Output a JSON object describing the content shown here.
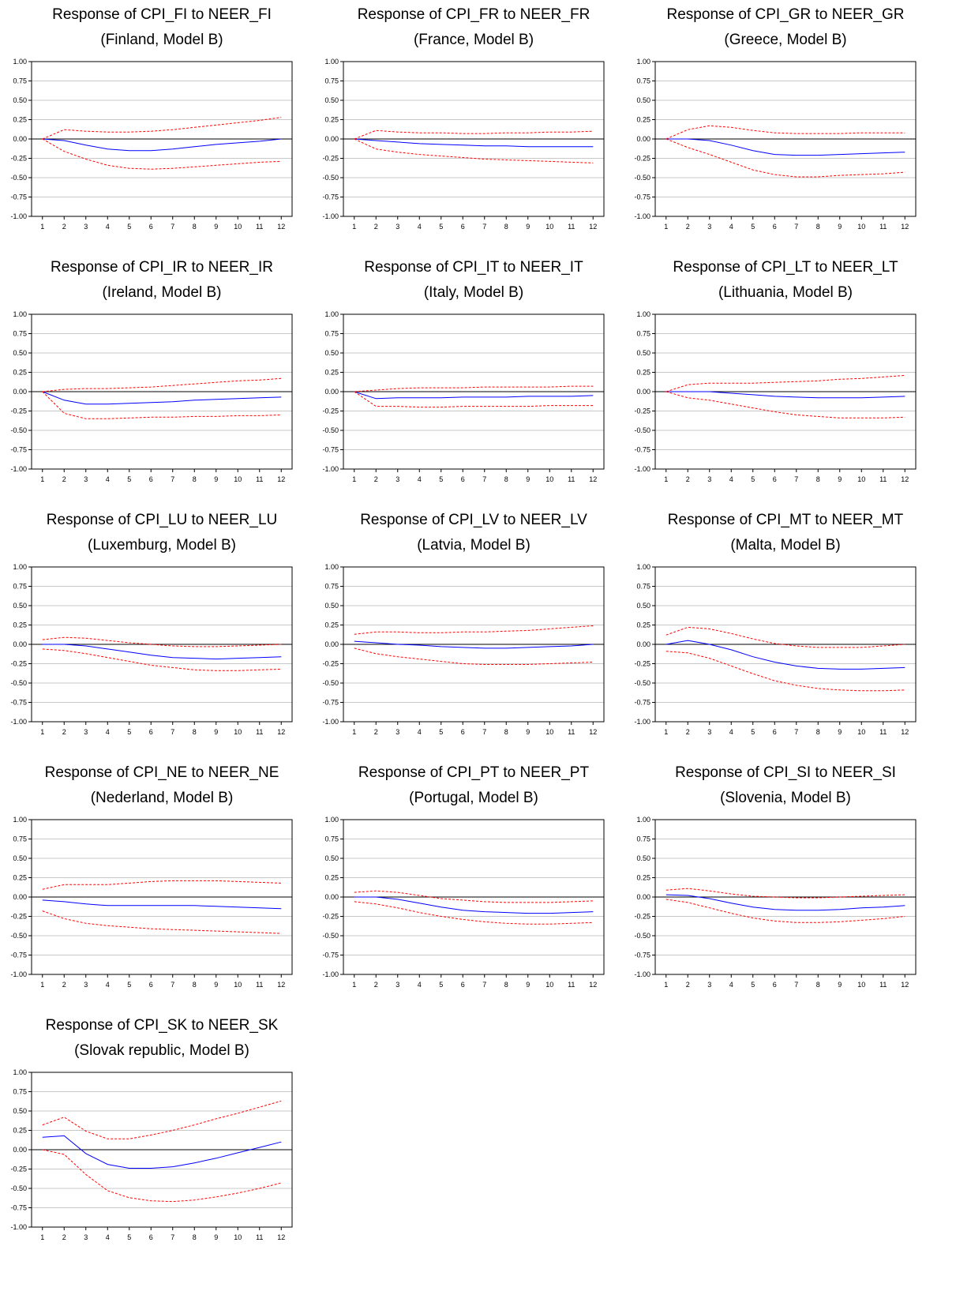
{
  "chart_data": [
    {
      "type": "line",
      "title": "Response of CPI_FI to NEER_FI",
      "subtitle": "(Finland, Model B)",
      "x": [
        1,
        2,
        3,
        4,
        5,
        6,
        7,
        8,
        9,
        10,
        11,
        12
      ],
      "ylim": [
        -1,
        1
      ],
      "series": [
        {
          "style": "solid",
          "color": "#0000ff",
          "values": [
            0,
            -0.02,
            -0.08,
            -0.13,
            -0.15,
            -0.15,
            -0.13,
            -0.1,
            -0.07,
            -0.05,
            -0.03,
            0
          ]
        },
        {
          "style": "dashed",
          "color": "#ff0000",
          "values": [
            0,
            0.12,
            0.1,
            0.09,
            0.09,
            0.1,
            0.12,
            0.15,
            0.18,
            0.21,
            0.24,
            0.28
          ]
        },
        {
          "style": "dashed",
          "color": "#ff0000",
          "values": [
            0,
            -0.16,
            -0.26,
            -0.34,
            -0.38,
            -0.39,
            -0.38,
            -0.36,
            -0.34,
            -0.32,
            -0.3,
            -0.29
          ]
        }
      ]
    },
    {
      "type": "line",
      "title": "Response of CPI_FR to NEER_FR",
      "subtitle": "(France, Model B)",
      "x": [
        1,
        2,
        3,
        4,
        5,
        6,
        7,
        8,
        9,
        10,
        11,
        12
      ],
      "ylim": [
        -1,
        1
      ],
      "series": [
        {
          "style": "solid",
          "color": "#0000ff",
          "values": [
            0,
            -0.02,
            -0.04,
            -0.06,
            -0.07,
            -0.08,
            -0.09,
            -0.09,
            -0.1,
            -0.1,
            -0.1,
            -0.1
          ]
        },
        {
          "style": "dashed",
          "color": "#ff0000",
          "values": [
            0,
            0.11,
            0.09,
            0.08,
            0.08,
            0.07,
            0.07,
            0.08,
            0.08,
            0.09,
            0.09,
            0.1
          ]
        },
        {
          "style": "dashed",
          "color": "#ff0000",
          "values": [
            0,
            -0.13,
            -0.17,
            -0.2,
            -0.22,
            -0.24,
            -0.26,
            -0.27,
            -0.28,
            -0.29,
            -0.3,
            -0.31
          ]
        }
      ]
    },
    {
      "type": "line",
      "title": "Response of CPI_GR to NEER_GR",
      "subtitle": "(Greece, Model B)",
      "x": [
        1,
        2,
        3,
        4,
        5,
        6,
        7,
        8,
        9,
        10,
        11,
        12
      ],
      "ylim": [
        -1,
        1
      ],
      "series": [
        {
          "style": "solid",
          "color": "#0000ff",
          "values": [
            0,
            0,
            -0.02,
            -0.08,
            -0.15,
            -0.2,
            -0.21,
            -0.21,
            -0.2,
            -0.19,
            -0.18,
            -0.17
          ]
        },
        {
          "style": "dashed",
          "color": "#ff0000",
          "values": [
            0,
            0.12,
            0.17,
            0.15,
            0.11,
            0.08,
            0.07,
            0.07,
            0.07,
            0.08,
            0.08,
            0.08
          ]
        },
        {
          "style": "dashed",
          "color": "#ff0000",
          "values": [
            0,
            -0.11,
            -0.2,
            -0.3,
            -0.4,
            -0.46,
            -0.49,
            -0.49,
            -0.47,
            -0.46,
            -0.45,
            -0.43
          ]
        }
      ]
    },
    {
      "type": "line",
      "title": "Response of CPI_IR to NEER_IR",
      "subtitle": "(Ireland, Model B)",
      "x": [
        1,
        2,
        3,
        4,
        5,
        6,
        7,
        8,
        9,
        10,
        11,
        12
      ],
      "ylim": [
        -1,
        1
      ],
      "series": [
        {
          "style": "solid",
          "color": "#0000ff",
          "values": [
            0,
            -0.11,
            -0.16,
            -0.16,
            -0.15,
            -0.14,
            -0.13,
            -0.11,
            -0.1,
            -0.09,
            -0.08,
            -0.07
          ]
        },
        {
          "style": "dashed",
          "color": "#ff0000",
          "values": [
            0,
            0.03,
            0.04,
            0.04,
            0.05,
            0.06,
            0.08,
            0.1,
            0.12,
            0.14,
            0.15,
            0.17
          ]
        },
        {
          "style": "dashed",
          "color": "#ff0000",
          "values": [
            0,
            -0.28,
            -0.35,
            -0.35,
            -0.34,
            -0.33,
            -0.33,
            -0.32,
            -0.32,
            -0.31,
            -0.31,
            -0.3
          ]
        }
      ]
    },
    {
      "type": "line",
      "title": "Response of CPI_IT to NEER_IT",
      "subtitle": "(Italy, Model B)",
      "x": [
        1,
        2,
        3,
        4,
        5,
        6,
        7,
        8,
        9,
        10,
        11,
        12
      ],
      "ylim": [
        -1,
        1
      ],
      "series": [
        {
          "style": "solid",
          "color": "#0000ff",
          "values": [
            0,
            -0.09,
            -0.08,
            -0.08,
            -0.08,
            -0.07,
            -0.07,
            -0.07,
            -0.06,
            -0.06,
            -0.06,
            -0.05
          ]
        },
        {
          "style": "dashed",
          "color": "#ff0000",
          "values": [
            0,
            0.02,
            0.04,
            0.05,
            0.05,
            0.05,
            0.06,
            0.06,
            0.06,
            0.06,
            0.07,
            0.07
          ]
        },
        {
          "style": "dashed",
          "color": "#ff0000",
          "values": [
            0,
            -0.19,
            -0.19,
            -0.2,
            -0.2,
            -0.19,
            -0.19,
            -0.19,
            -0.19,
            -0.18,
            -0.18,
            -0.18
          ]
        }
      ]
    },
    {
      "type": "line",
      "title": "Response of CPI_LT to NEER_LT",
      "subtitle": "(Lithuania, Model B)",
      "x": [
        1,
        2,
        3,
        4,
        5,
        6,
        7,
        8,
        9,
        10,
        11,
        12
      ],
      "ylim": [
        -1,
        1
      ],
      "series": [
        {
          "style": "solid",
          "color": "#0000ff",
          "values": [
            0,
            0,
            0,
            -0.02,
            -0.04,
            -0.06,
            -0.07,
            -0.08,
            -0.08,
            -0.08,
            -0.07,
            -0.06
          ]
        },
        {
          "style": "dashed",
          "color": "#ff0000",
          "values": [
            0,
            0.09,
            0.11,
            0.11,
            0.11,
            0.12,
            0.13,
            0.14,
            0.16,
            0.17,
            0.19,
            0.21
          ]
        },
        {
          "style": "dashed",
          "color": "#ff0000",
          "values": [
            0,
            -0.08,
            -0.11,
            -0.16,
            -0.21,
            -0.26,
            -0.3,
            -0.32,
            -0.34,
            -0.34,
            -0.34,
            -0.33
          ]
        }
      ]
    },
    {
      "type": "line",
      "title": "Response of CPI_LU to NEER_LU",
      "subtitle": "(Luxemburg, Model B)",
      "x": [
        1,
        2,
        3,
        4,
        5,
        6,
        7,
        8,
        9,
        10,
        11,
        12
      ],
      "ylim": [
        -1,
        1
      ],
      "series": [
        {
          "style": "solid",
          "color": "#0000ff",
          "values": [
            0,
            0,
            -0.02,
            -0.06,
            -0.1,
            -0.14,
            -0.17,
            -0.18,
            -0.19,
            -0.18,
            -0.17,
            -0.16
          ]
        },
        {
          "style": "dashed",
          "color": "#ff0000",
          "values": [
            0.06,
            0.09,
            0.08,
            0.05,
            0.02,
            0,
            -0.02,
            -0.03,
            -0.03,
            -0.02,
            -0.01,
            0
          ]
        },
        {
          "style": "dashed",
          "color": "#ff0000",
          "values": [
            -0.06,
            -0.08,
            -0.12,
            -0.17,
            -0.22,
            -0.27,
            -0.3,
            -0.33,
            -0.34,
            -0.34,
            -0.33,
            -0.32
          ]
        }
      ]
    },
    {
      "type": "line",
      "title": "Response of CPI_LV to NEER_LV",
      "subtitle": "(Latvia, Model B)",
      "x": [
        1,
        2,
        3,
        4,
        5,
        6,
        7,
        8,
        9,
        10,
        11,
        12
      ],
      "ylim": [
        -1,
        1
      ],
      "series": [
        {
          "style": "solid",
          "color": "#0000ff",
          "values": [
            0.04,
            0.02,
            0,
            -0.01,
            -0.03,
            -0.04,
            -0.05,
            -0.05,
            -0.04,
            -0.03,
            -0.02,
            0
          ]
        },
        {
          "style": "dashed",
          "color": "#ff0000",
          "values": [
            0.13,
            0.16,
            0.16,
            0.15,
            0.15,
            0.16,
            0.16,
            0.17,
            0.18,
            0.2,
            0.22,
            0.24
          ]
        },
        {
          "style": "dashed",
          "color": "#ff0000",
          "values": [
            -0.05,
            -0.12,
            -0.16,
            -0.19,
            -0.22,
            -0.25,
            -0.26,
            -0.26,
            -0.26,
            -0.25,
            -0.24,
            -0.23
          ]
        }
      ]
    },
    {
      "type": "line",
      "title": "Response of CPI_MT to NEER_MT",
      "subtitle": "(Malta, Model B)",
      "x": [
        1,
        2,
        3,
        4,
        5,
        6,
        7,
        8,
        9,
        10,
        11,
        12
      ],
      "ylim": [
        -1,
        1
      ],
      "series": [
        {
          "style": "solid",
          "color": "#0000ff",
          "values": [
            0,
            0.05,
            0,
            -0.07,
            -0.16,
            -0.23,
            -0.28,
            -0.31,
            -0.32,
            -0.32,
            -0.31,
            -0.3
          ]
        },
        {
          "style": "dashed",
          "color": "#ff0000",
          "values": [
            0.12,
            0.22,
            0.2,
            0.14,
            0.07,
            0.01,
            -0.02,
            -0.04,
            -0.04,
            -0.04,
            -0.02,
            0
          ]
        },
        {
          "style": "dashed",
          "color": "#ff0000",
          "values": [
            -0.09,
            -0.11,
            -0.18,
            -0.28,
            -0.38,
            -0.47,
            -0.53,
            -0.57,
            -0.59,
            -0.6,
            -0.6,
            -0.59
          ]
        }
      ]
    },
    {
      "type": "line",
      "title": "Response of CPI_NE to NEER_NE",
      "subtitle": "(Nederland, Model B)",
      "x": [
        1,
        2,
        3,
        4,
        5,
        6,
        7,
        8,
        9,
        10,
        11,
        12
      ],
      "ylim": [
        -1,
        1
      ],
      "series": [
        {
          "style": "solid",
          "color": "#0000ff",
          "values": [
            -0.04,
            -0.06,
            -0.09,
            -0.11,
            -0.11,
            -0.11,
            -0.11,
            -0.11,
            -0.12,
            -0.13,
            -0.14,
            -0.15
          ]
        },
        {
          "style": "dashed",
          "color": "#ff0000",
          "values": [
            0.1,
            0.16,
            0.16,
            0.16,
            0.18,
            0.2,
            0.21,
            0.21,
            0.21,
            0.2,
            0.19,
            0.18
          ]
        },
        {
          "style": "dashed",
          "color": "#ff0000",
          "values": [
            -0.18,
            -0.28,
            -0.34,
            -0.37,
            -0.39,
            -0.41,
            -0.42,
            -0.43,
            -0.44,
            -0.45,
            -0.46,
            -0.47
          ]
        }
      ]
    },
    {
      "type": "line",
      "title": "Response of CPI_PT to NEER_PT",
      "subtitle": "(Portugal, Model B)",
      "x": [
        1,
        2,
        3,
        4,
        5,
        6,
        7,
        8,
        9,
        10,
        11,
        12
      ],
      "ylim": [
        -1,
        1
      ],
      "series": [
        {
          "style": "solid",
          "color": "#0000ff",
          "values": [
            0,
            0,
            -0.03,
            -0.08,
            -0.13,
            -0.17,
            -0.19,
            -0.2,
            -0.21,
            -0.21,
            -0.2,
            -0.19
          ]
        },
        {
          "style": "dashed",
          "color": "#ff0000",
          "values": [
            0.06,
            0.08,
            0.06,
            0.02,
            -0.02,
            -0.04,
            -0.06,
            -0.07,
            -0.07,
            -0.07,
            -0.06,
            -0.05
          ]
        },
        {
          "style": "dashed",
          "color": "#ff0000",
          "values": [
            -0.06,
            -0.09,
            -0.14,
            -0.2,
            -0.25,
            -0.29,
            -0.32,
            -0.34,
            -0.35,
            -0.35,
            -0.34,
            -0.33
          ]
        }
      ]
    },
    {
      "type": "line",
      "title": "Response of CPI_SI to NEER_SI",
      "subtitle": "(Slovenia, Model B)",
      "x": [
        1,
        2,
        3,
        4,
        5,
        6,
        7,
        8,
        9,
        10,
        11,
        12
      ],
      "ylim": [
        -1,
        1
      ],
      "series": [
        {
          "style": "solid",
          "color": "#0000ff",
          "values": [
            0.03,
            0.02,
            -0.02,
            -0.08,
            -0.13,
            -0.16,
            -0.17,
            -0.17,
            -0.16,
            -0.14,
            -0.13,
            -0.11
          ]
        },
        {
          "style": "dashed",
          "color": "#ff0000",
          "values": [
            0.09,
            0.11,
            0.08,
            0.04,
            0.01,
            0,
            -0.01,
            -0.01,
            0,
            0.01,
            0.02,
            0.03
          ]
        },
        {
          "style": "dashed",
          "color": "#ff0000",
          "values": [
            -0.03,
            -0.07,
            -0.14,
            -0.21,
            -0.27,
            -0.31,
            -0.33,
            -0.33,
            -0.32,
            -0.3,
            -0.28,
            -0.25
          ]
        }
      ]
    },
    {
      "type": "line",
      "title": "Response of CPI_SK to NEER_SK",
      "subtitle": "(Slovak republic, Model B)",
      "x": [
        1,
        2,
        3,
        4,
        5,
        6,
        7,
        8,
        9,
        10,
        11,
        12
      ],
      "ylim": [
        -1,
        1
      ],
      "series": [
        {
          "style": "solid",
          "color": "#0000ff",
          "values": [
            0.16,
            0.18,
            -0.05,
            -0.19,
            -0.24,
            -0.24,
            -0.22,
            -0.17,
            -0.11,
            -0.04,
            0.03,
            0.1
          ]
        },
        {
          "style": "dashed",
          "color": "#ff0000",
          "values": [
            0.32,
            0.42,
            0.24,
            0.14,
            0.14,
            0.19,
            0.25,
            0.32,
            0.4,
            0.47,
            0.55,
            0.63
          ]
        },
        {
          "style": "dashed",
          "color": "#ff0000",
          "values": [
            0,
            -0.06,
            -0.32,
            -0.53,
            -0.62,
            -0.66,
            -0.67,
            -0.65,
            -0.61,
            -0.56,
            -0.5,
            -0.43
          ]
        }
      ]
    }
  ],
  "y_tick_labels": [
    "1.00",
    "0.75",
    "0.50",
    "0.25",
    "0.00",
    "-0.25",
    "-0.50",
    "-0.75",
    "-1.00"
  ],
  "x_tick_labels": [
    "1",
    "2",
    "3",
    "4",
    "5",
    "6",
    "7",
    "8",
    "9",
    "10",
    "11",
    "12"
  ],
  "colors": {
    "response": "#0000ff",
    "band": "#ff0000",
    "grid": "#c8c8c8",
    "zero": "#000000"
  }
}
